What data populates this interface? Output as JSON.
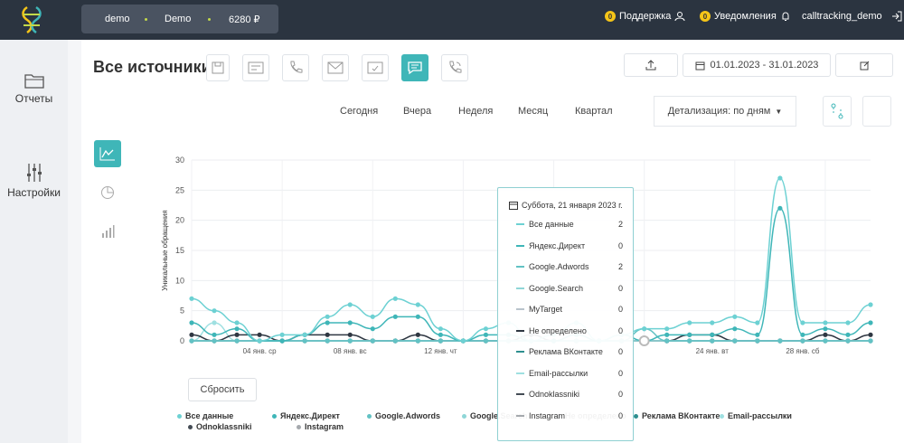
{
  "header": {
    "account_name": "demo",
    "project_name": "Demo",
    "balance": "6280 ₽",
    "support_count": "0",
    "support_label": "Поддержка",
    "notifications_count": "0",
    "notifications_label": "Уведомления",
    "user": "calltracking_demo"
  },
  "sidebar": {
    "items": [
      {
        "label": "Отчеты",
        "icon": "folder-icon"
      },
      {
        "label": "Настройки",
        "icon": "sliders-icon"
      }
    ]
  },
  "page": {
    "title": "Все источники",
    "date_range": "01.01.2023 - 31.01.2023",
    "periods": [
      "Сегодня",
      "Вчера",
      "Неделя",
      "Месяц",
      "Квартал"
    ],
    "detail_label": "Детализация: по дням",
    "reset_label": "Сбросить"
  },
  "colors": {
    "accent": "#3fb6b8",
    "topbar": "#2b3440"
  },
  "tooltip": {
    "date": "Суббота, 21 января 2023 г.",
    "rows": [
      {
        "name": "Все данные",
        "value": "2"
      },
      {
        "name": "Яндекс.Директ",
        "value": "0"
      },
      {
        "name": "Google.Adwords",
        "value": "2"
      },
      {
        "name": "Google.Search",
        "value": "0"
      },
      {
        "name": "MyTarget",
        "value": "0"
      },
      {
        "name": "Не определено",
        "value": "0"
      },
      {
        "name": "Реклама ВКонтакте",
        "value": "0"
      },
      {
        "name": "Email-рассылки",
        "value": "0"
      },
      {
        "name": "Odnoklassniki",
        "value": "0"
      },
      {
        "name": "Instagram",
        "value": "0"
      }
    ]
  },
  "chart_data": {
    "type": "line",
    "ylabel": "Уникальные обращения",
    "ylim": [
      0,
      30
    ],
    "yticks": [
      0,
      5,
      10,
      15,
      20,
      25,
      30
    ],
    "x": [
      1,
      2,
      3,
      4,
      5,
      6,
      7,
      8,
      9,
      10,
      11,
      12,
      13,
      14,
      15,
      16,
      17,
      18,
      19,
      20,
      21,
      22,
      23,
      24,
      25,
      26,
      27,
      28,
      29,
      30,
      31
    ],
    "xtick_labels": [
      {
        "day": 4,
        "label": "04 янв. ср"
      },
      {
        "day": 8,
        "label": "08 янв. вс"
      },
      {
        "day": 12,
        "label": "12 янв. чт"
      },
      {
        "day": 24,
        "label": "24 янв. вт"
      },
      {
        "day": 28,
        "label": "28 янв. сб"
      }
    ],
    "grid": true,
    "legend_position": "bottom",
    "series": [
      {
        "name": "Все данные",
        "color": "#6dd1d3",
        "values": [
          7,
          5,
          3,
          0,
          1,
          1,
          4,
          6,
          4,
          7,
          6,
          2,
          0,
          2,
          3,
          0,
          1,
          3,
          0,
          1,
          2,
          2,
          3,
          3,
          4,
          3,
          27,
          3,
          3,
          3,
          6
        ]
      },
      {
        "name": "Яндекс.Директ",
        "color": "#3fb6b8",
        "values": [
          3,
          1,
          2,
          0,
          0,
          1,
          3,
          3,
          2,
          4,
          4,
          1,
          0,
          1,
          1,
          0,
          0,
          1,
          0,
          1,
          0,
          1,
          1,
          1,
          2,
          1,
          22,
          1,
          2,
          1,
          3
        ]
      },
      {
        "name": "Google.Adwords",
        "color": "#62c2c4",
        "values": [
          0,
          0,
          0,
          0,
          0,
          0,
          0,
          0,
          0,
          0,
          0,
          0,
          0,
          0,
          0,
          0,
          0,
          0,
          0,
          0,
          2,
          0,
          0,
          0,
          0,
          0,
          0,
          0,
          0,
          0,
          0
        ]
      },
      {
        "name": "Google.Search",
        "color": "#8fd6d7",
        "values": [
          0,
          0,
          0,
          0,
          0,
          0,
          0,
          0,
          0,
          0,
          0,
          0,
          0,
          0,
          0,
          0,
          0,
          0,
          0,
          0,
          0,
          0,
          0,
          0,
          0,
          0,
          0,
          0,
          0,
          0,
          0
        ]
      },
      {
        "name": "MyTarget",
        "color": "#b9c3cc",
        "values": [
          0,
          0,
          0,
          0,
          0,
          0,
          0,
          0,
          0,
          0,
          0,
          0,
          0,
          0,
          0,
          0,
          0,
          0,
          0,
          0,
          0,
          0,
          0,
          0,
          0,
          0,
          0,
          0,
          0,
          0,
          0
        ]
      },
      {
        "name": "Не определено",
        "color": "#2f3742",
        "values": [
          1,
          0,
          1,
          1,
          0,
          1,
          1,
          1,
          0,
          0,
          1,
          0,
          0,
          0,
          0,
          1,
          0,
          0,
          0,
          0,
          0,
          0,
          1,
          1,
          0,
          0,
          0,
          0,
          1,
          0,
          1
        ]
      },
      {
        "name": "Реклама ВКонтакте",
        "color": "#2e8f8f",
        "values": [
          0,
          0,
          0,
          0,
          0,
          0,
          0,
          0,
          0,
          0,
          0,
          0,
          0,
          0,
          0,
          0,
          0,
          0,
          0,
          0,
          0,
          0,
          0,
          0,
          0,
          0,
          0,
          0,
          0,
          0,
          0
        ]
      },
      {
        "name": "Email-рассылки",
        "color": "#9fe0e1",
        "values": [
          0,
          3,
          0,
          0,
          0,
          0,
          0,
          0,
          0,
          0,
          0,
          0,
          0,
          0,
          0,
          0,
          0,
          0,
          0,
          0,
          0,
          0,
          0,
          0,
          0,
          0,
          0,
          0,
          0,
          0,
          0
        ]
      },
      {
        "name": "Odnoklassniki",
        "color": "#444c55",
        "values": [
          0,
          0,
          0,
          0,
          0,
          0,
          0,
          0,
          0,
          0,
          0,
          0,
          0,
          0,
          0,
          0,
          0,
          0,
          0,
          0,
          0,
          0,
          0,
          0,
          0,
          0,
          0,
          0,
          0,
          0,
          0
        ]
      },
      {
        "name": "Instagram",
        "color": "#a5a9ad",
        "values": [
          0,
          0,
          0,
          0,
          0,
          0,
          0,
          0,
          0,
          0,
          0,
          0,
          0,
          0,
          0,
          0,
          0,
          0,
          0,
          0,
          0,
          0,
          0,
          0,
          0,
          0,
          0,
          0,
          0,
          0,
          0
        ]
      }
    ]
  }
}
